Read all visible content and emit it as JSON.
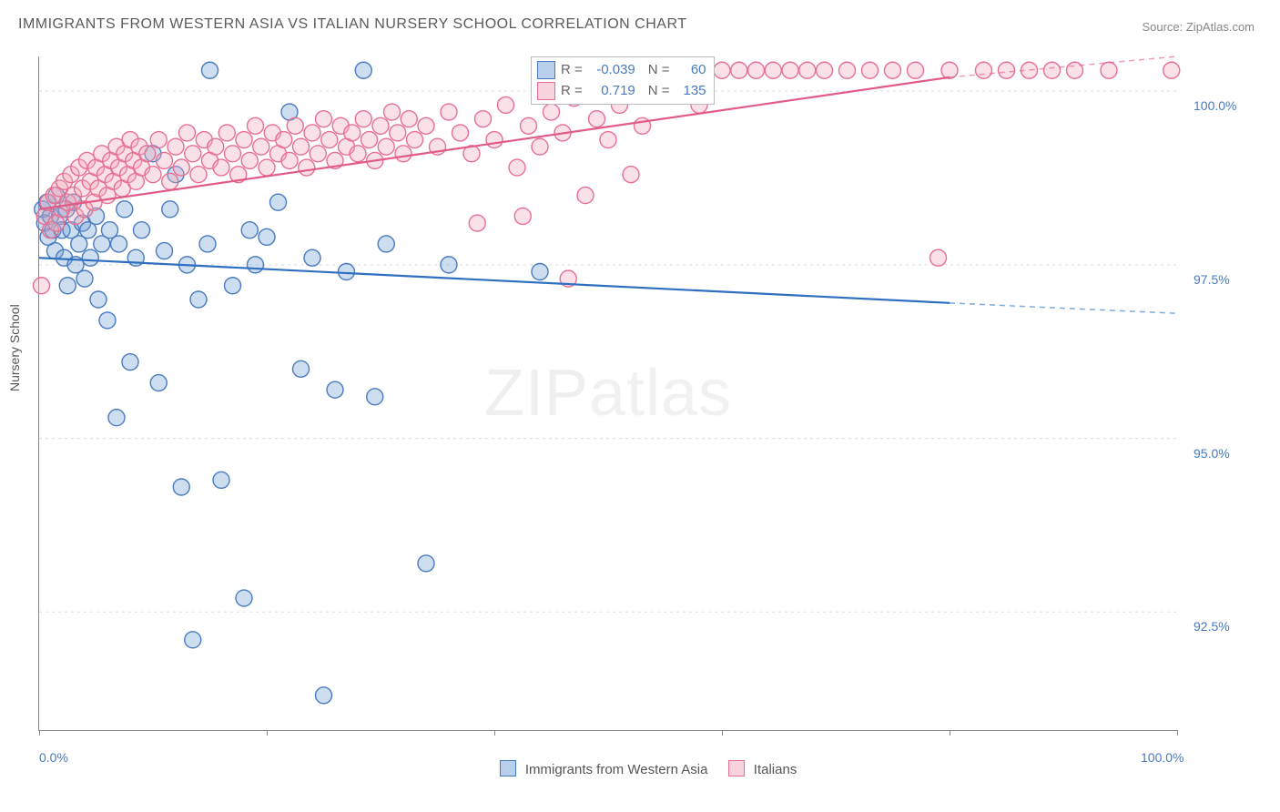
{
  "title": "IMMIGRANTS FROM WESTERN ASIA VS ITALIAN NURSERY SCHOOL CORRELATION CHART",
  "source": "Source: ZipAtlas.com",
  "watermark_main": "ZIP",
  "watermark_sub": "atlas",
  "ylabel": "Nursery School",
  "chart": {
    "type": "scatter",
    "background_color": "#ffffff",
    "grid_color": "#dcdcdc",
    "axis_color": "#888888",
    "label_color": "#4a7abf",
    "label_fontsize": 14,
    "title_fontsize": 16,
    "title_color": "#5a5a5a",
    "xlim": [
      0,
      100
    ],
    "ylim": [
      90.8,
      100.5
    ],
    "xticks": [
      0,
      20,
      40,
      60,
      80,
      100
    ],
    "xtick_labels": {
      "0": "0.0%",
      "100": "100.0%"
    },
    "yticks": [
      92.5,
      95.0,
      97.5,
      100.0
    ],
    "ytick_labels": [
      "92.5%",
      "95.0%",
      "97.5%",
      "100.0%"
    ],
    "marker_radius": 9,
    "marker_fill_opacity": 0.35,
    "marker_stroke_width": 1.4,
    "line_width": 2.2,
    "series": [
      {
        "name": "Immigrants from Western Asia",
        "color": "#6fa0d8",
        "stroke": "#4a7abf",
        "line_color": "#2f6fc0",
        "R": "-0.039",
        "N": "60",
        "trend": {
          "x1": 0,
          "y1": 97.6,
          "x2": 80,
          "y2": 96.95,
          "dash_x2": 100,
          "dash_y2": 96.8
        },
        "points": [
          [
            0.3,
            98.3
          ],
          [
            0.5,
            98.1
          ],
          [
            0.7,
            98.4
          ],
          [
            0.8,
            97.9
          ],
          [
            1.0,
            98.2
          ],
          [
            1.2,
            98.0
          ],
          [
            1.4,
            97.7
          ],
          [
            1.5,
            98.5
          ],
          [
            1.8,
            98.2
          ],
          [
            2.0,
            98.0
          ],
          [
            2.2,
            97.6
          ],
          [
            2.4,
            98.3
          ],
          [
            2.5,
            97.2
          ],
          [
            2.8,
            98.0
          ],
          [
            3.0,
            98.4
          ],
          [
            3.2,
            97.5
          ],
          [
            3.5,
            97.8
          ],
          [
            3.8,
            98.1
          ],
          [
            4.0,
            97.3
          ],
          [
            4.3,
            98.0
          ],
          [
            4.5,
            97.6
          ],
          [
            5.0,
            98.2
          ],
          [
            5.2,
            97.0
          ],
          [
            5.5,
            97.8
          ],
          [
            6.0,
            96.7
          ],
          [
            6.2,
            98.0
          ],
          [
            6.8,
            95.3
          ],
          [
            7.0,
            97.8
          ],
          [
            7.5,
            98.3
          ],
          [
            8.0,
            96.1
          ],
          [
            8.5,
            97.6
          ],
          [
            9.0,
            98.0
          ],
          [
            10.0,
            99.1
          ],
          [
            10.5,
            95.8
          ],
          [
            11.0,
            97.7
          ],
          [
            11.5,
            98.3
          ],
          [
            12.0,
            98.8
          ],
          [
            12.5,
            94.3
          ],
          [
            13.0,
            97.5
          ],
          [
            13.5,
            92.1
          ],
          [
            14.0,
            97.0
          ],
          [
            14.8,
            97.8
          ],
          [
            15.0,
            100.3
          ],
          [
            16.0,
            94.4
          ],
          [
            17.0,
            97.2
          ],
          [
            18.0,
            92.7
          ],
          [
            18.5,
            98.0
          ],
          [
            19.0,
            97.5
          ],
          [
            20.0,
            97.9
          ],
          [
            21.0,
            98.4
          ],
          [
            22.0,
            99.7
          ],
          [
            23.0,
            96.0
          ],
          [
            24.0,
            97.6
          ],
          [
            25.0,
            91.3
          ],
          [
            26.0,
            95.7
          ],
          [
            27.0,
            97.4
          ],
          [
            28.5,
            100.3
          ],
          [
            29.5,
            95.6
          ],
          [
            30.5,
            97.8
          ],
          [
            34.0,
            93.2
          ],
          [
            36.0,
            97.5
          ],
          [
            44.0,
            97.4
          ]
        ]
      },
      {
        "name": "Italians",
        "color": "#f2a8bb",
        "stroke": "#e76f91",
        "line_color": "#e05c85",
        "R": "0.719",
        "N": "135",
        "trend": {
          "x1": 0,
          "y1": 98.3,
          "x2": 80,
          "y2": 100.2,
          "dash_x2": 100,
          "dash_y2": 100.5
        },
        "points": [
          [
            0.2,
            97.2
          ],
          [
            0.5,
            98.2
          ],
          [
            0.8,
            98.4
          ],
          [
            1.0,
            98.0
          ],
          [
            1.3,
            98.5
          ],
          [
            1.5,
            98.1
          ],
          [
            1.8,
            98.6
          ],
          [
            2.0,
            98.3
          ],
          [
            2.2,
            98.7
          ],
          [
            2.5,
            98.4
          ],
          [
            2.8,
            98.8
          ],
          [
            3.0,
            98.5
          ],
          [
            3.2,
            98.2
          ],
          [
            3.5,
            98.9
          ],
          [
            3.8,
            98.6
          ],
          [
            4.0,
            98.3
          ],
          [
            4.2,
            99.0
          ],
          [
            4.5,
            98.7
          ],
          [
            4.8,
            98.4
          ],
          [
            5.0,
            98.9
          ],
          [
            5.2,
            98.6
          ],
          [
            5.5,
            99.1
          ],
          [
            5.8,
            98.8
          ],
          [
            6.0,
            98.5
          ],
          [
            6.3,
            99.0
          ],
          [
            6.5,
            98.7
          ],
          [
            6.8,
            99.2
          ],
          [
            7.0,
            98.9
          ],
          [
            7.3,
            98.6
          ],
          [
            7.5,
            99.1
          ],
          [
            7.8,
            98.8
          ],
          [
            8.0,
            99.3
          ],
          [
            8.3,
            99.0
          ],
          [
            8.5,
            98.7
          ],
          [
            8.8,
            99.2
          ],
          [
            9.0,
            98.9
          ],
          [
            9.5,
            99.1
          ],
          [
            10.0,
            98.8
          ],
          [
            10.5,
            99.3
          ],
          [
            11.0,
            99.0
          ],
          [
            11.5,
            98.7
          ],
          [
            12.0,
            99.2
          ],
          [
            12.5,
            98.9
          ],
          [
            13.0,
            99.4
          ],
          [
            13.5,
            99.1
          ],
          [
            14.0,
            98.8
          ],
          [
            14.5,
            99.3
          ],
          [
            15.0,
            99.0
          ],
          [
            15.5,
            99.2
          ],
          [
            16.0,
            98.9
          ],
          [
            16.5,
            99.4
          ],
          [
            17.0,
            99.1
          ],
          [
            17.5,
            98.8
          ],
          [
            18.0,
            99.3
          ],
          [
            18.5,
            99.0
          ],
          [
            19.0,
            99.5
          ],
          [
            19.5,
            99.2
          ],
          [
            20.0,
            98.9
          ],
          [
            20.5,
            99.4
          ],
          [
            21.0,
            99.1
          ],
          [
            21.5,
            99.3
          ],
          [
            22.0,
            99.0
          ],
          [
            22.5,
            99.5
          ],
          [
            23.0,
            99.2
          ],
          [
            23.5,
            98.9
          ],
          [
            24.0,
            99.4
          ],
          [
            24.5,
            99.1
          ],
          [
            25.0,
            99.6
          ],
          [
            25.5,
            99.3
          ],
          [
            26.0,
            99.0
          ],
          [
            26.5,
            99.5
          ],
          [
            27.0,
            99.2
          ],
          [
            27.5,
            99.4
          ],
          [
            28.0,
            99.1
          ],
          [
            28.5,
            99.6
          ],
          [
            29.0,
            99.3
          ],
          [
            29.5,
            99.0
          ],
          [
            30.0,
            99.5
          ],
          [
            30.5,
            99.2
          ],
          [
            31.0,
            99.7
          ],
          [
            31.5,
            99.4
          ],
          [
            32.0,
            99.1
          ],
          [
            32.5,
            99.6
          ],
          [
            33.0,
            99.3
          ],
          [
            34.0,
            99.5
          ],
          [
            35.0,
            99.2
          ],
          [
            36.0,
            99.7
          ],
          [
            37.0,
            99.4
          ],
          [
            38.0,
            99.1
          ],
          [
            38.5,
            98.1
          ],
          [
            39.0,
            99.6
          ],
          [
            40.0,
            99.3
          ],
          [
            41.0,
            99.8
          ],
          [
            42.0,
            98.9
          ],
          [
            42.5,
            98.2
          ],
          [
            43.0,
            99.5
          ],
          [
            44.0,
            99.2
          ],
          [
            45.0,
            99.7
          ],
          [
            46.0,
            99.4
          ],
          [
            46.5,
            97.3
          ],
          [
            47.0,
            99.9
          ],
          [
            48.0,
            98.5
          ],
          [
            49.0,
            99.6
          ],
          [
            50.0,
            99.3
          ],
          [
            51.0,
            99.8
          ],
          [
            52.0,
            98.8
          ],
          [
            53.0,
            99.5
          ],
          [
            55.0,
            100.3
          ],
          [
            57.0,
            100.3
          ],
          [
            58.0,
            99.8
          ],
          [
            60.0,
            100.3
          ],
          [
            61.5,
            100.3
          ],
          [
            63.0,
            100.3
          ],
          [
            64.5,
            100.3
          ],
          [
            66.0,
            100.3
          ],
          [
            67.5,
            100.3
          ],
          [
            69.0,
            100.3
          ],
          [
            71.0,
            100.3
          ],
          [
            73.0,
            100.3
          ],
          [
            75.0,
            100.3
          ],
          [
            77.0,
            100.3
          ],
          [
            79.0,
            97.6
          ],
          [
            80.0,
            100.3
          ],
          [
            83.0,
            100.3
          ],
          [
            85.0,
            100.3
          ],
          [
            87.0,
            100.3
          ],
          [
            89.0,
            100.3
          ],
          [
            91.0,
            100.3
          ],
          [
            94.0,
            100.3
          ],
          [
            99.5,
            100.3
          ]
        ]
      }
    ]
  },
  "legend": {
    "series1": "Immigrants from Western Asia",
    "series2": "Italians"
  },
  "corr_labels": {
    "R": "R =",
    "N": "N ="
  }
}
